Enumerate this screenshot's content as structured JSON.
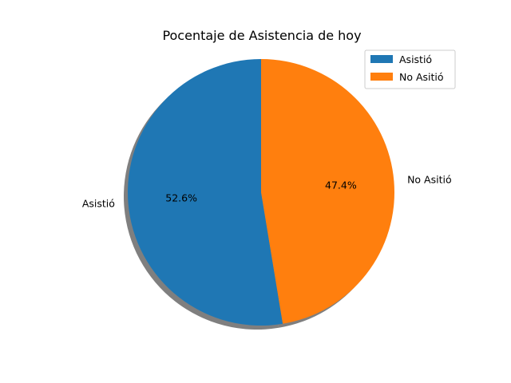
{
  "chart_data": {
    "type": "pie",
    "title": "Pocentaje de Asistencia de hoy",
    "labels": [
      "Asistió",
      "No Asitió"
    ],
    "values": [
      52.6,
      47.4
    ],
    "percent_labels": [
      "52.6%",
      "47.4%"
    ],
    "colors": [
      "#1f77b4",
      "#ff7f0e"
    ],
    "start_angle_deg": 90,
    "direction": "counterclockwise",
    "shadow": true,
    "legend": {
      "placement": "top-right",
      "entries": [
        "Asistió",
        "No Asitió"
      ]
    }
  }
}
